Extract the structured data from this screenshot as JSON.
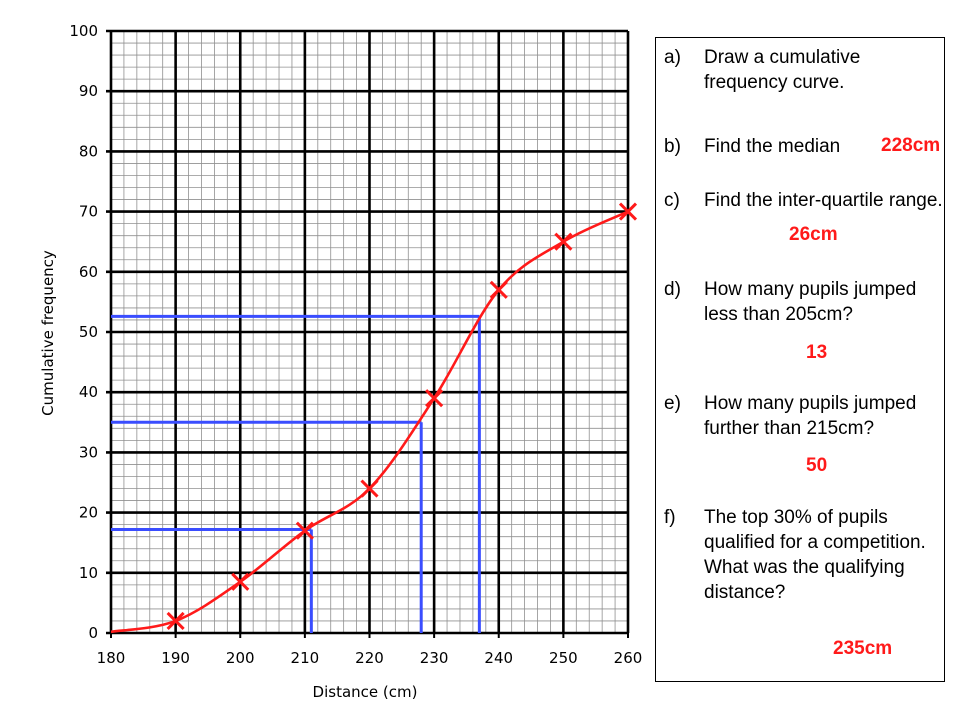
{
  "chart_data": {
    "type": "line",
    "xlabel": "Distance (cm)",
    "ylabel": "Cumulative frequency",
    "xlim": [
      180,
      260
    ],
    "ylim": [
      0,
      100
    ],
    "x_ticks": [
      180,
      190,
      200,
      210,
      220,
      230,
      240,
      250,
      260
    ],
    "y_ticks": [
      0,
      10,
      20,
      30,
      40,
      50,
      60,
      70,
      80,
      90,
      100
    ],
    "grid": true,
    "series": [
      {
        "x": [
          190,
          200,
          210,
          220,
          230,
          240,
          250,
          260
        ],
        "values": [
          2,
          8.5,
          17,
          24,
          39,
          57,
          65,
          70
        ],
        "marker": "x",
        "curve": "smooth",
        "curve_start": [
          180,
          0.2
        ],
        "color": "#ff1a1a"
      }
    ],
    "reading_lines": [
      {
        "y": 17.2,
        "x": 211,
        "color": "#3a4dff"
      },
      {
        "y": 35,
        "x": 228,
        "color": "#3a4dff"
      },
      {
        "y": 52.6,
        "x": 237,
        "color": "#3a4dff"
      }
    ]
  },
  "questions": [
    {
      "letter": "a)",
      "text": "Draw a cumulative frequency curve."
    },
    {
      "letter": "b)",
      "text": "Find the median"
    },
    {
      "letter": "c)",
      "text": "Find the inter-quartile range."
    },
    {
      "letter": "d)",
      "text": "How many pupils jumped less than 205cm?"
    },
    {
      "letter": "e)",
      "text": "How many pupils jumped further than 215cm?"
    },
    {
      "letter": "f)",
      "text": "The top 30% of pupils qualified for a competition. What was the qualifying distance?"
    }
  ],
  "answers": {
    "median": "228cm",
    "iqr": "26cm",
    "less_than_205": "13",
    "further_than_215": "50",
    "qualifying": "235cm"
  },
  "colors": {
    "curve": "#ff1a1a",
    "reading": "#3a4dff",
    "answer": "#ff1a1a"
  }
}
